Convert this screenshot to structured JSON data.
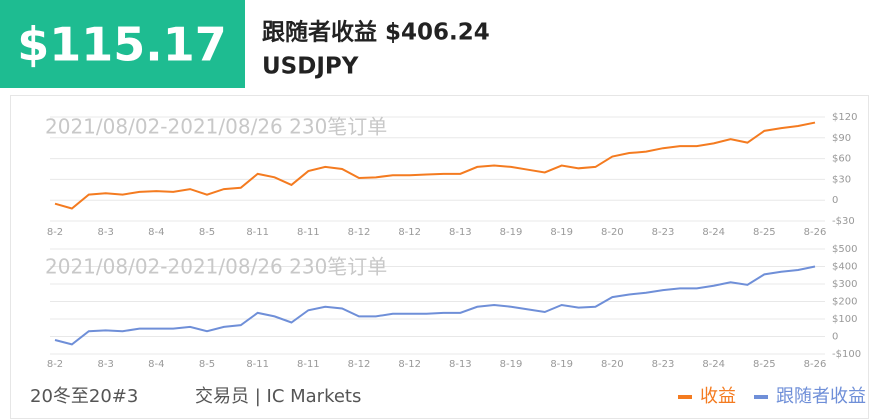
{
  "header": {
    "profit": "$115.17",
    "title": "跟随者收益 $406.24",
    "symbol": "USDJPY"
  },
  "footer": {
    "account": "20冬至20#3",
    "broker": "交易员 | IC Markets"
  },
  "chart_data": [
    {
      "type": "line",
      "subtitle": "2021/08/02-2021/08/26 230笔订单",
      "categories": [
        "8-2",
        null,
        null,
        "8-3",
        null,
        null,
        "8-4",
        null,
        null,
        "8-5",
        null,
        null,
        "8-11",
        null,
        null,
        "8-11",
        null,
        null,
        "8-12",
        null,
        null,
        "8-12",
        null,
        null,
        "8-13",
        null,
        null,
        "8-19",
        null,
        null,
        "8-19",
        null,
        null,
        "8-20",
        null,
        null,
        "8-23",
        null,
        null,
        "8-24",
        null,
        null,
        "8-25",
        null,
        null,
        "8-26"
      ],
      "series": [
        {
          "name": "收益",
          "color": "#f47b20",
          "values": [
            -5,
            -12,
            8,
            10,
            8,
            12,
            13,
            12,
            16,
            8,
            16,
            18,
            38,
            33,
            22,
            42,
            48,
            45,
            32,
            33,
            36,
            36,
            37,
            38,
            38,
            48,
            50,
            48,
            44,
            40,
            50,
            46,
            48,
            63,
            68,
            70,
            75,
            78,
            78,
            82,
            88,
            83,
            100,
            104,
            107,
            112
          ]
        }
      ],
      "ylim": [
        -30,
        120
      ],
      "yticks": [
        {
          "value": -30,
          "label": "-$30"
        },
        0,
        {
          "value": 30,
          "label": "$30"
        },
        {
          "value": 60,
          "label": "$60"
        },
        {
          "value": 90,
          "label": "$90"
        },
        {
          "value": 120,
          "label": "$120"
        }
      ],
      "grid": true
    },
    {
      "type": "line",
      "subtitle": "2021/08/02-2021/08/26 230笔订单",
      "categories": [
        "8-2",
        null,
        null,
        "8-3",
        null,
        null,
        "8-4",
        null,
        null,
        "8-5",
        null,
        null,
        "8-11",
        null,
        null,
        "8-11",
        null,
        null,
        "8-12",
        null,
        null,
        "8-12",
        null,
        null,
        "8-13",
        null,
        null,
        "8-19",
        null,
        null,
        "8-19",
        null,
        null,
        "8-20",
        null,
        null,
        "8-23",
        null,
        null,
        "8-24",
        null,
        null,
        "8-25",
        null,
        null,
        "8-26"
      ],
      "series": [
        {
          "name": "跟随者收益",
          "color": "#6f8fd8",
          "values": [
            -20,
            -45,
            30,
            35,
            30,
            45,
            45,
            45,
            55,
            30,
            55,
            65,
            135,
            115,
            80,
            150,
            170,
            160,
            115,
            115,
            130,
            130,
            130,
            135,
            135,
            170,
            180,
            170,
            155,
            140,
            180,
            165,
            170,
            225,
            240,
            250,
            265,
            275,
            275,
            290,
            310,
            295,
            355,
            370,
            380,
            400
          ]
        }
      ],
      "ylim": [
        -100,
        500
      ],
      "yticks": [
        {
          "value": -100,
          "label": "-$100"
        },
        0,
        {
          "value": 100,
          "label": "$100"
        },
        {
          "value": 200,
          "label": "$200"
        },
        {
          "value": 300,
          "label": "$300"
        },
        {
          "value": 400,
          "label": "$400"
        },
        {
          "value": 500,
          "label": "$500"
        }
      ],
      "grid": true
    }
  ]
}
